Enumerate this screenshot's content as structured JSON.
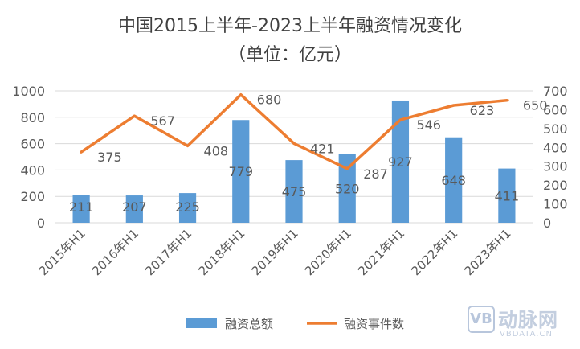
{
  "title": "中国2015上半年-2023上半年融资情况变化",
  "subtitle": "（单位：亿元）",
  "watermark": {
    "mark": "VB",
    "name_cn": "动脉网",
    "name_en": "VBDATA.CN"
  },
  "colors": {
    "bar": "#5b9bd5",
    "line": "#ed7d31",
    "text": "#595959",
    "grid": "#d9d9d9"
  },
  "chart_data": {
    "type": "bar+line",
    "categories": [
      "2015年H1",
      "2016年H1",
      "2017年H1",
      "2018年H1",
      "2019年H1",
      "2020年H1",
      "2021年H1",
      "2022年H1",
      "2023年H1"
    ],
    "series": [
      {
        "name": "融资总额",
        "type": "bar",
        "axis": "left",
        "values": [
          211,
          207,
          225,
          779,
          475,
          520,
          927,
          648,
          411
        ]
      },
      {
        "name": "融资事件数",
        "type": "line",
        "axis": "right",
        "values": [
          375,
          567,
          408,
          680,
          421,
          287,
          546,
          623,
          650
        ]
      }
    ],
    "y_left": {
      "min": 0,
      "max": 1000,
      "ticks": [
        0,
        200,
        400,
        600,
        800,
        1000
      ]
    },
    "y_right": {
      "min": 0,
      "max": 700,
      "ticks": [
        0,
        100,
        200,
        300,
        400,
        500,
        600,
        700
      ]
    },
    "grid": true,
    "legend_position": "bottom"
  }
}
